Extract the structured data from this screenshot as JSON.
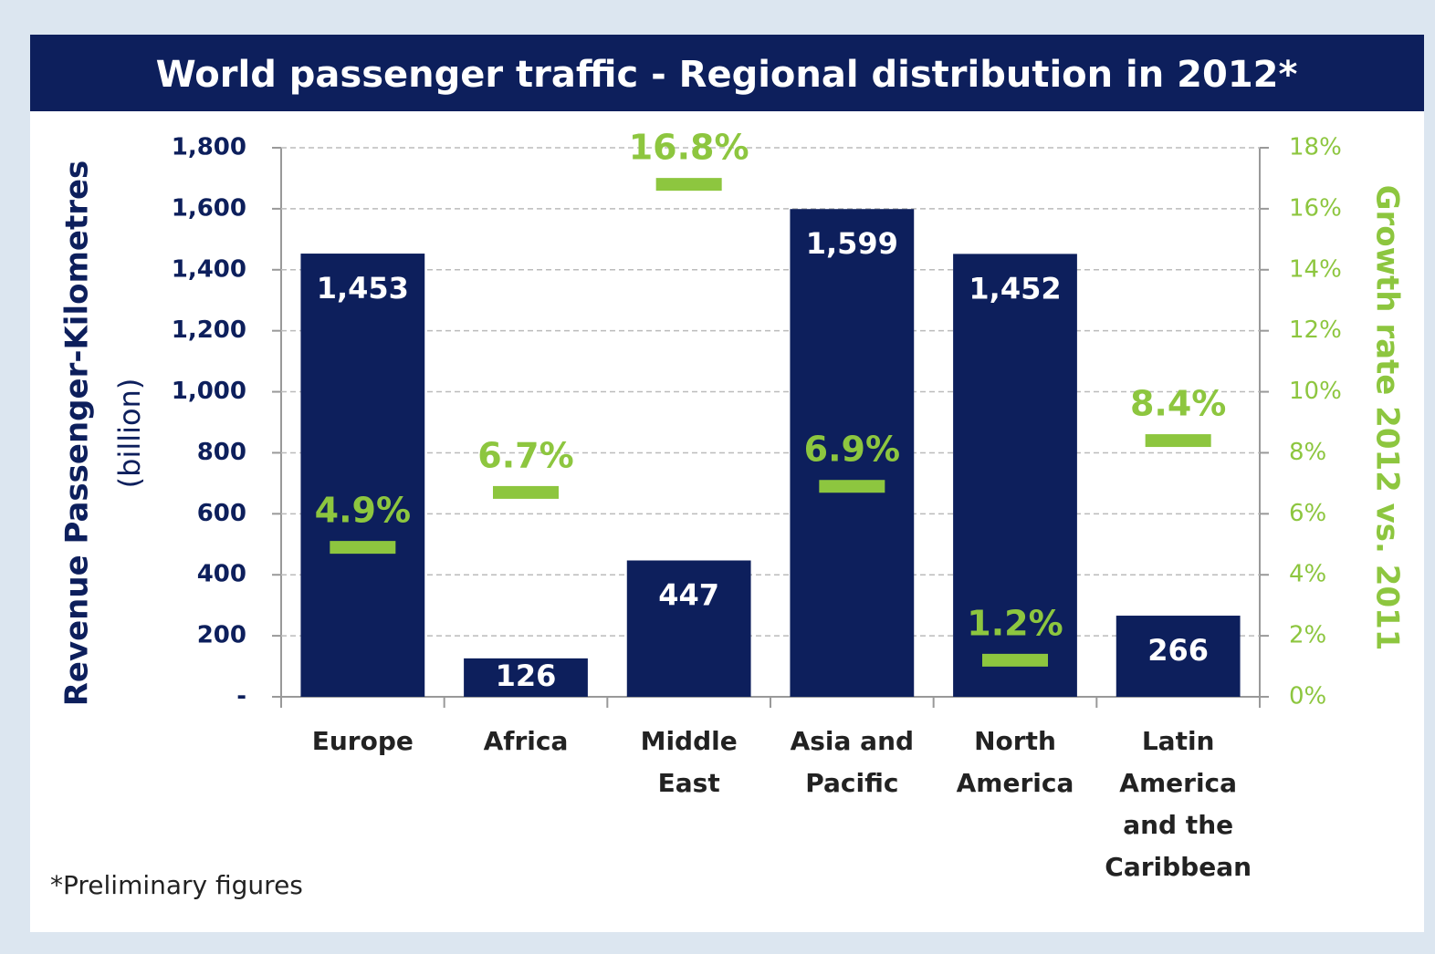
{
  "chart_data": {
    "type": "bar",
    "title": "World passenger traffic - Regional distribution in 2012*",
    "y_label": "Revenue Passenger-Kilometres",
    "y_label_unit": "(billion)",
    "y2_label": "Growth rate 2012 vs. 2011",
    "footnote": "*Preliminary figures",
    "categories": [
      "Europe",
      "Africa",
      "Middle East",
      "Asia and Pacific",
      "North America",
      "Latin America and the Caribbean"
    ],
    "series": [
      {
        "name": "Revenue Passenger-Kilometres",
        "color": "#0d1f5c",
        "values": [
          1453,
          126,
          447,
          1599,
          1452,
          266
        ],
        "value_labels": [
          "1,453",
          "126",
          "447",
          "1,599",
          "1,452",
          "266"
        ]
      },
      {
        "name": "Growth rate 2012 vs. 2011",
        "color": "#8dc63f",
        "axis": "y2",
        "values": [
          4.9,
          6.7,
          16.8,
          6.9,
          1.2,
          8.4
        ],
        "value_labels": [
          "4.9%",
          "6.7%",
          "16.8%",
          "6.9%",
          "1.2%",
          "8.4%"
        ]
      }
    ],
    "ylim": [
      0,
      1800
    ],
    "yticks": [
      {
        "value": 0,
        "label": "-"
      },
      200,
      400,
      600,
      800,
      {
        "value": 1000,
        "label": "1,000"
      },
      {
        "value": 1200,
        "label": "1,200"
      },
      {
        "value": 1400,
        "label": "1,400"
      },
      {
        "value": 1600,
        "label": "1,600"
      },
      {
        "value": 1800,
        "label": "1,800"
      }
    ],
    "y2lim": [
      0,
      18
    ],
    "y2ticks": [
      {
        "value": 0,
        "label": "0%"
      },
      {
        "value": 2,
        "label": "2%"
      },
      {
        "value": 4,
        "label": "4%"
      },
      {
        "value": 6,
        "label": "6%"
      },
      {
        "value": 8,
        "label": "8%"
      },
      {
        "value": 10,
        "label": "10%"
      },
      {
        "value": 12,
        "label": "12%"
      },
      {
        "value": 14,
        "label": "14%"
      },
      {
        "value": 16,
        "label": "16%"
      },
      {
        "value": 18,
        "label": "18%"
      }
    ],
    "grid": true
  }
}
